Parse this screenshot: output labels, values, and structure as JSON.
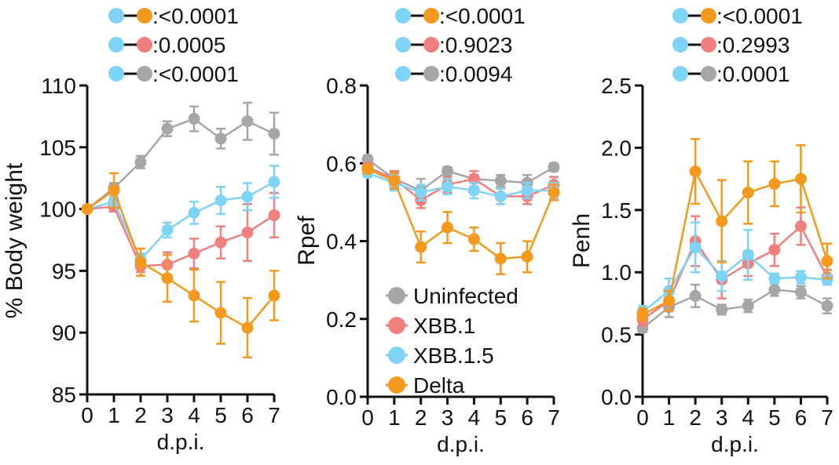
{
  "colors": {
    "Uninfected": "#a6a6a6",
    "XBB.1": "#f08080",
    "XBB.1.5": "#7fd3f5",
    "Delta": "#f39a1e"
  },
  "legend": {
    "entries": [
      "Uninfected",
      "XBB.1",
      "XBB.1.5",
      "Delta"
    ]
  },
  "chart_data": [
    {
      "id": "bw",
      "type": "line",
      "ylabel": "% Body weight",
      "xlabel": "d.p.i.",
      "ylim": [
        85,
        110
      ],
      "yticks": [
        "85",
        "90",
        "95",
        "100",
        "105",
        "110"
      ],
      "xticks": [
        "0",
        "1",
        "2",
        "3",
        "4",
        "5",
        "6",
        "7"
      ],
      "pvalues": [
        {
          "to": "Delta",
          "label": ":<0.0001"
        },
        {
          "to": "XBB.1",
          "label": ":0.0005"
        },
        {
          "to": "Uninfected",
          "label": ":<0.0001"
        }
      ],
      "series": [
        {
          "name": "Uninfected",
          "values": [
            100,
            101.7,
            103.8,
            106.5,
            107.3,
            105.7,
            107.1,
            106.1
          ],
          "errors": [
            0,
            0.4,
            0.5,
            0.6,
            1.0,
            0.8,
            1.5,
            1.7
          ]
        },
        {
          "name": "XBB.1",
          "values": [
            100,
            100.2,
            95.4,
            95.5,
            96.4,
            97.3,
            98.1,
            99.5
          ],
          "errors": [
            0,
            0.4,
            0.5,
            1.0,
            1.2,
            1.3,
            2.3,
            1.8
          ]
        },
        {
          "name": "XBB.1.5",
          "values": [
            100,
            100.6,
            95.9,
            98.3,
            99.7,
            100.7,
            101.0,
            102.2
          ],
          "errors": [
            0,
            0.4,
            0.5,
            0.6,
            0.9,
            1.1,
            1.1,
            1.3
          ]
        },
        {
          "name": "Delta",
          "values": [
            100,
            101.5,
            95.7,
            94.4,
            93.0,
            91.6,
            90.4,
            93.0
          ],
          "errors": [
            0,
            1.4,
            1.1,
            1.9,
            2.1,
            2.5,
            2.4,
            2.0
          ]
        }
      ]
    },
    {
      "id": "rpef",
      "type": "line",
      "ylabel": "Rpef",
      "xlabel": "d.p.i.",
      "ylim": [
        0.0,
        0.8
      ],
      "yticks": [
        "0.0",
        "0.2",
        "0.4",
        "0.6",
        "0.8"
      ],
      "xticks": [
        "0",
        "1",
        "2",
        "3",
        "4",
        "5",
        "6",
        "7"
      ],
      "pvalues": [
        {
          "to": "Delta",
          "label": ":<0.0001"
        },
        {
          "to": "XBB.1",
          "label": ":0.9023"
        },
        {
          "to": "Uninfected",
          "label": ":0.0094"
        }
      ],
      "series": [
        {
          "name": "Uninfected",
          "values": [
            0.61,
            0.56,
            0.53,
            0.58,
            0.56,
            0.555,
            0.55,
            0.59
          ],
          "errors": [
            0.01,
            0.02,
            0.03,
            0.01,
            0.01,
            0.015,
            0.02,
            0.01
          ]
        },
        {
          "name": "XBB.1",
          "values": [
            0.59,
            0.56,
            0.505,
            0.545,
            0.56,
            0.515,
            0.515,
            0.545
          ],
          "errors": [
            0.01,
            0.02,
            0.02,
            0.02,
            0.02,
            0.02,
            0.02,
            0.02
          ]
        },
        {
          "name": "XBB.1.5",
          "values": [
            0.575,
            0.55,
            0.525,
            0.54,
            0.53,
            0.515,
            0.53,
            0.53
          ],
          "errors": [
            0.01,
            0.02,
            0.02,
            0.02,
            0.02,
            0.02,
            0.02,
            0.02
          ]
        },
        {
          "name": "Delta",
          "values": [
            0.585,
            0.555,
            0.385,
            0.435,
            0.405,
            0.355,
            0.36,
            0.525
          ],
          "errors": [
            0.01,
            0.02,
            0.04,
            0.04,
            0.03,
            0.04,
            0.04,
            0.02
          ]
        }
      ]
    },
    {
      "id": "penh",
      "type": "line",
      "ylabel": "Penh",
      "xlabel": "d.p.i.",
      "ylim": [
        0.0,
        2.5
      ],
      "yticks": [
        "0.0",
        "0.5",
        "1.0",
        "1.5",
        "2.0",
        "2.5"
      ],
      "xticks": [
        "0",
        "1",
        "2",
        "3",
        "4",
        "5",
        "6",
        "7"
      ],
      "pvalues": [
        {
          "to": "Delta",
          "label": ":<0.0001"
        },
        {
          "to": "XBB.1",
          "label": ":0.2993"
        },
        {
          "to": "Uninfected",
          "label": ":0.0001"
        }
      ],
      "series": [
        {
          "name": "Uninfected",
          "values": [
            0.55,
            0.72,
            0.81,
            0.7,
            0.73,
            0.86,
            0.84,
            0.73
          ],
          "errors": [
            0.03,
            0.08,
            0.09,
            0.04,
            0.05,
            0.05,
            0.05,
            0.06
          ]
        },
        {
          "name": "XBB.1",
          "values": [
            0.62,
            0.77,
            1.25,
            0.94,
            1.07,
            1.18,
            1.37,
            0.96
          ],
          "errors": [
            0.05,
            0.08,
            0.2,
            0.15,
            0.1,
            0.13,
            0.15,
            0.06
          ]
        },
        {
          "name": "XBB.1.5",
          "values": [
            0.68,
            0.85,
            1.2,
            0.97,
            1.14,
            0.95,
            0.96,
            0.94
          ],
          "errors": [
            0.05,
            0.1,
            0.2,
            0.12,
            0.2,
            0.04,
            0.05,
            0.04
          ]
        },
        {
          "name": "Delta",
          "values": [
            0.66,
            0.77,
            1.81,
            1.41,
            1.64,
            1.71,
            1.75,
            1.09
          ],
          "errors": [
            0.05,
            0.08,
            0.26,
            0.33,
            0.25,
            0.18,
            0.27,
            0.14
          ]
        }
      ]
    }
  ]
}
